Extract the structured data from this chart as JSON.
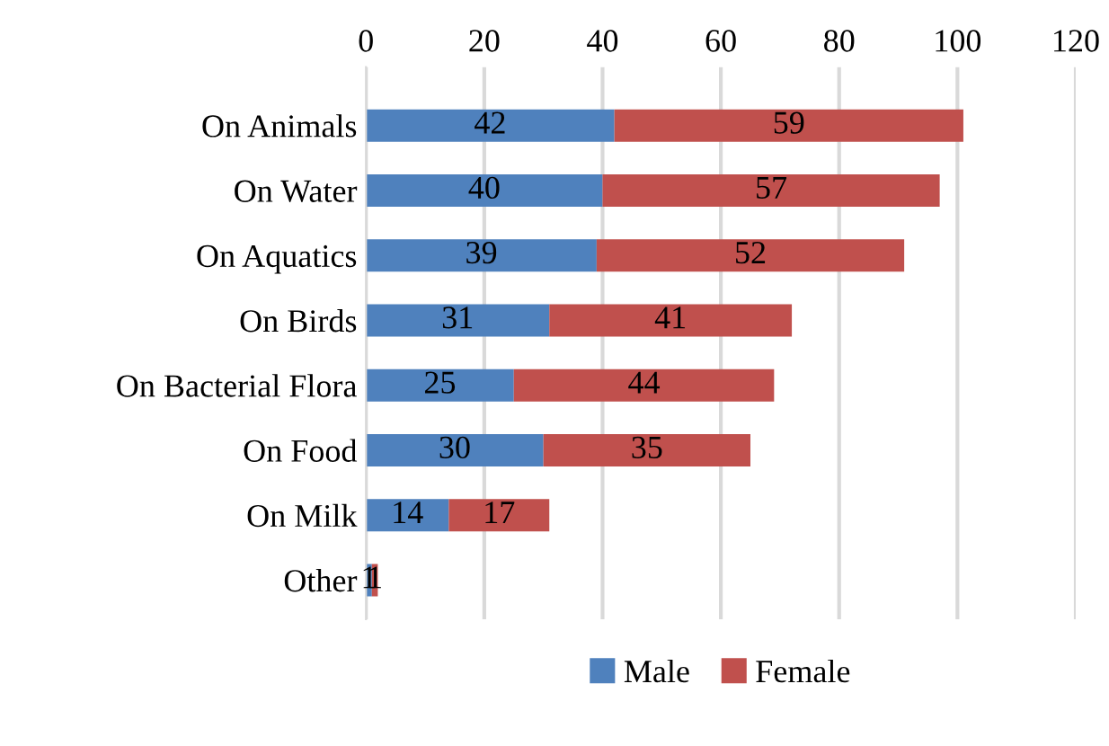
{
  "chart_data": {
    "type": "bar",
    "orientation": "horizontal",
    "stacked": true,
    "data_labels": true,
    "categories": [
      "On Animals",
      "On Water",
      "On Aquatics",
      "On Birds",
      "On Bacterial Flora",
      "On Food",
      "On Milk",
      "Other"
    ],
    "series": [
      {
        "name": "Male",
        "color": "#4f81bd",
        "values": [
          42,
          40,
          39,
          31,
          25,
          30,
          14,
          1
        ]
      },
      {
        "name": "Female",
        "color": "#c0504d",
        "values": [
          59,
          57,
          52,
          41,
          44,
          35,
          17,
          1
        ]
      }
    ],
    "xlim": [
      0,
      120
    ],
    "xticks": [
      0,
      20,
      40,
      60,
      80,
      100,
      120
    ],
    "grid": "x",
    "legend": "bottom"
  }
}
